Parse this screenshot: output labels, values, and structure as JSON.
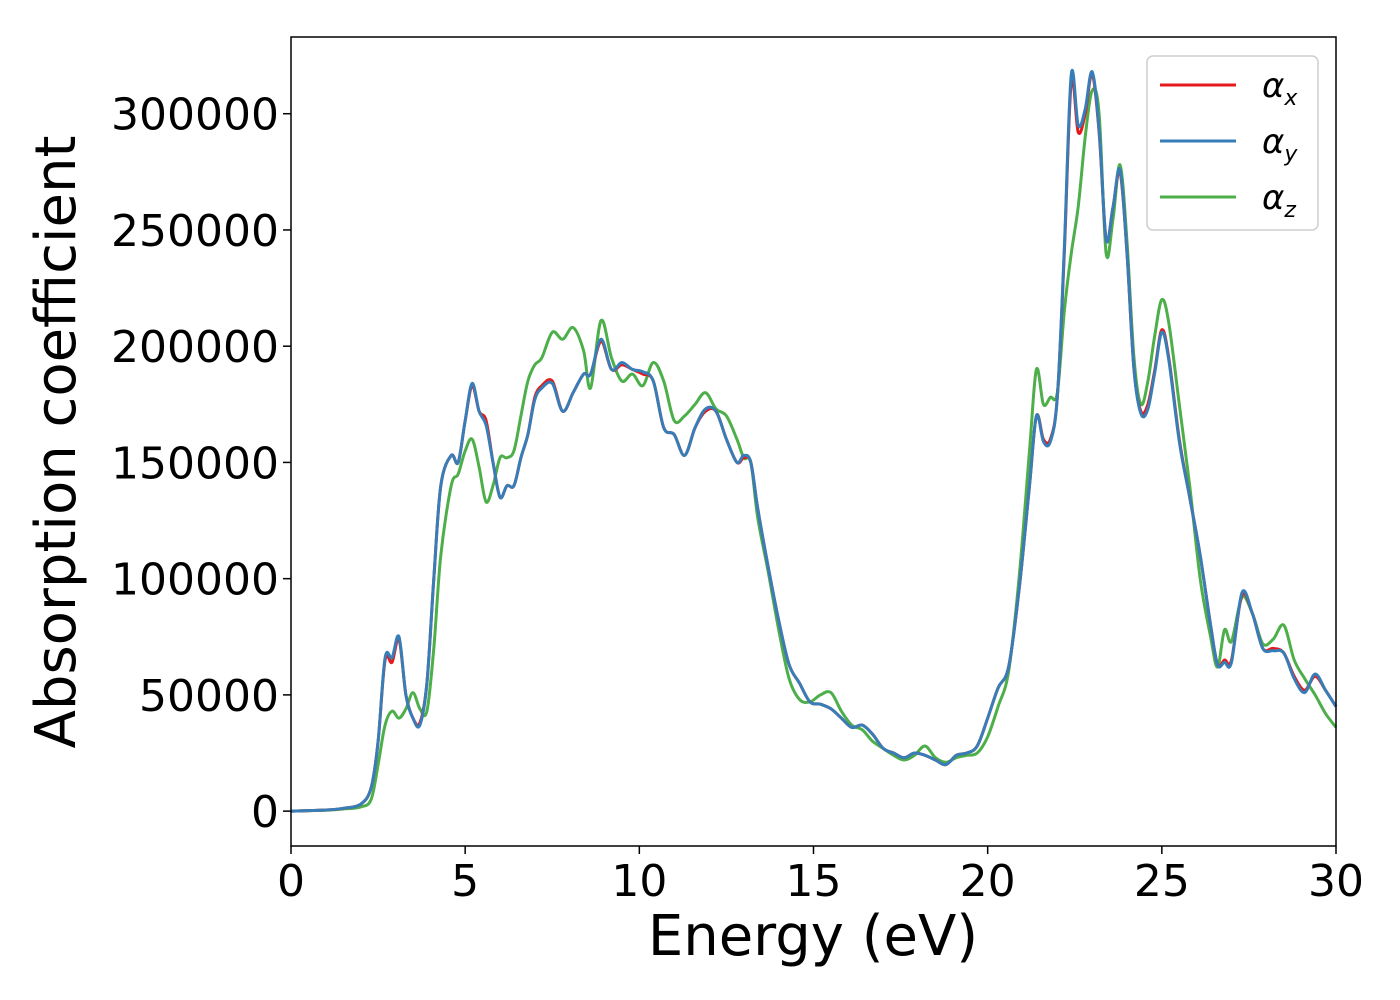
{
  "chart_data": {
    "type": "line",
    "title": "",
    "xlabel": "Energy (eV)",
    "ylabel": "Absorption coefficient",
    "xlim": [
      0,
      30
    ],
    "ylim": [
      -15000,
      333000
    ],
    "xticks": [
      0,
      5,
      10,
      15,
      20,
      25,
      30
    ],
    "yticks": [
      0,
      50000,
      100000,
      150000,
      200000,
      250000,
      300000
    ],
    "grid": false,
    "legend_position": "top-right",
    "x": [
      0,
      1,
      1.5,
      2,
      2.3,
      2.5,
      2.7,
      2.9,
      3.1,
      3.3,
      3.5,
      3.7,
      3.9,
      4.1,
      4.3,
      4.6,
      4.8,
      5.0,
      5.2,
      5.4,
      5.6,
      5.8,
      6.0,
      6.2,
      6.4,
      6.6,
      6.8,
      7.0,
      7.2,
      7.5,
      7.8,
      8.1,
      8.4,
      8.6,
      8.9,
      9.2,
      9.5,
      9.8,
      10.1,
      10.4,
      10.7,
      11.0,
      11.3,
      11.6,
      11.9,
      12.2,
      12.5,
      12.8,
      13.0,
      13.2,
      13.4,
      13.7,
      14.0,
      14.3,
      14.6,
      14.9,
      15.2,
      15.5,
      15.8,
      16.1,
      16.4,
      16.7,
      17.0,
      17.3,
      17.6,
      17.9,
      18.2,
      18.5,
      18.8,
      19.1,
      19.4,
      19.7,
      20.0,
      20.3,
      20.6,
      20.9,
      21.2,
      21.4,
      21.6,
      21.8,
      22.0,
      22.2,
      22.4,
      22.6,
      22.8,
      23.0,
      23.2,
      23.4,
      23.6,
      23.8,
      24.0,
      24.2,
      24.4,
      24.6,
      24.8,
      25.0,
      25.2,
      25.5,
      25.8,
      26.1,
      26.4,
      26.6,
      26.8,
      27.0,
      27.3,
      27.6,
      27.9,
      28.2,
      28.5,
      28.8,
      29.1,
      29.4,
      29.7,
      30.0
    ],
    "series": [
      {
        "name": "α_x",
        "color": "#e41a1c",
        "values": [
          0,
          500,
          1200,
          3000,
          10000,
          30000,
          65000,
          64000,
          74000,
          50000,
          40000,
          38000,
          55000,
          100000,
          140000,
          153000,
          150000,
          168000,
          183000,
          172000,
          168000,
          150000,
          135000,
          140000,
          140000,
          152000,
          162000,
          178000,
          183000,
          185000,
          172000,
          180000,
          188000,
          188000,
          202000,
          190000,
          192000,
          190000,
          188000,
          185000,
          165000,
          162000,
          153000,
          165000,
          172000,
          172000,
          160000,
          150000,
          152000,
          150000,
          130000,
          105000,
          82000,
          63000,
          55000,
          47000,
          46000,
          44000,
          40000,
          36000,
          37000,
          33000,
          27000,
          25000,
          23000,
          25000,
          24000,
          22000,
          20000,
          24000,
          25000,
          28000,
          40000,
          53000,
          62000,
          95000,
          140000,
          170000,
          160000,
          160000,
          178000,
          240000,
          314000,
          292000,
          300000,
          317000,
          292000,
          246000,
          260000,
          275000,
          240000,
          190000,
          172000,
          175000,
          190000,
          207000,
          195000,
          160000,
          135000,
          110000,
          80000,
          63000,
          65000,
          65000,
          93000,
          85000,
          70000,
          70000,
          68000,
          58000,
          52000,
          58000,
          52000,
          45000
        ]
      },
      {
        "name": "α_y",
        "color": "#377eb8",
        "values": [
          0,
          500,
          1200,
          3000,
          10000,
          30000,
          66000,
          66000,
          75000,
          50000,
          40000,
          37000,
          55000,
          100000,
          140000,
          153000,
          150000,
          168000,
          184000,
          172000,
          166000,
          150000,
          135000,
          140000,
          140000,
          152000,
          162000,
          177000,
          182000,
          184000,
          172000,
          180000,
          188000,
          188000,
          203000,
          190000,
          193000,
          190000,
          189000,
          185000,
          165000,
          162000,
          153000,
          165000,
          173000,
          172000,
          160000,
          150000,
          153000,
          150000,
          130000,
          105000,
          82000,
          63000,
          55000,
          47000,
          46000,
          44000,
          40000,
          36000,
          37000,
          33000,
          27000,
          25000,
          23000,
          25000,
          24000,
          22000,
          20000,
          24000,
          25000,
          28000,
          40000,
          53000,
          62000,
          95000,
          140000,
          170000,
          159000,
          159000,
          178000,
          242000,
          317000,
          295000,
          302000,
          318000,
          293000,
          246000,
          260000,
          276000,
          240000,
          190000,
          171000,
          173000,
          189000,
          206000,
          194000,
          159000,
          135000,
          110000,
          80000,
          63000,
          64000,
          64000,
          94000,
          85000,
          70000,
          69000,
          68000,
          57000,
          51000,
          59000,
          52000,
          45000
        ]
      },
      {
        "name": "α_z",
        "color": "#4daf4a",
        "values": [
          0,
          400,
          900,
          1800,
          5000,
          20000,
          37000,
          43000,
          40000,
          44000,
          51000,
          44000,
          43000,
          70000,
          110000,
          140000,
          145000,
          155000,
          160000,
          148000,
          133000,
          140000,
          152000,
          152000,
          155000,
          170000,
          185000,
          192000,
          195000,
          206000,
          203000,
          208000,
          198000,
          182000,
          211000,
          195000,
          185000,
          188000,
          183000,
          193000,
          185000,
          168000,
          170000,
          175000,
          180000,
          173000,
          170000,
          160000,
          152000,
          150000,
          126000,
          103000,
          78000,
          57000,
          48000,
          47000,
          50000,
          51000,
          43000,
          37000,
          35000,
          30000,
          27000,
          24000,
          22000,
          24000,
          28000,
          23000,
          21000,
          23000,
          24000,
          25000,
          32000,
          45000,
          60000,
          100000,
          155000,
          190000,
          175000,
          178000,
          180000,
          215000,
          240000,
          260000,
          290000,
          310000,
          300000,
          240000,
          255000,
          278000,
          245000,
          195000,
          175000,
          185000,
          205000,
          220000,
          210000,
          175000,
          140000,
          100000,
          75000,
          62000,
          78000,
          73000,
          92000,
          85000,
          72000,
          74000,
          80000,
          65000,
          57000,
          50000,
          42000,
          36000
        ]
      }
    ]
  }
}
